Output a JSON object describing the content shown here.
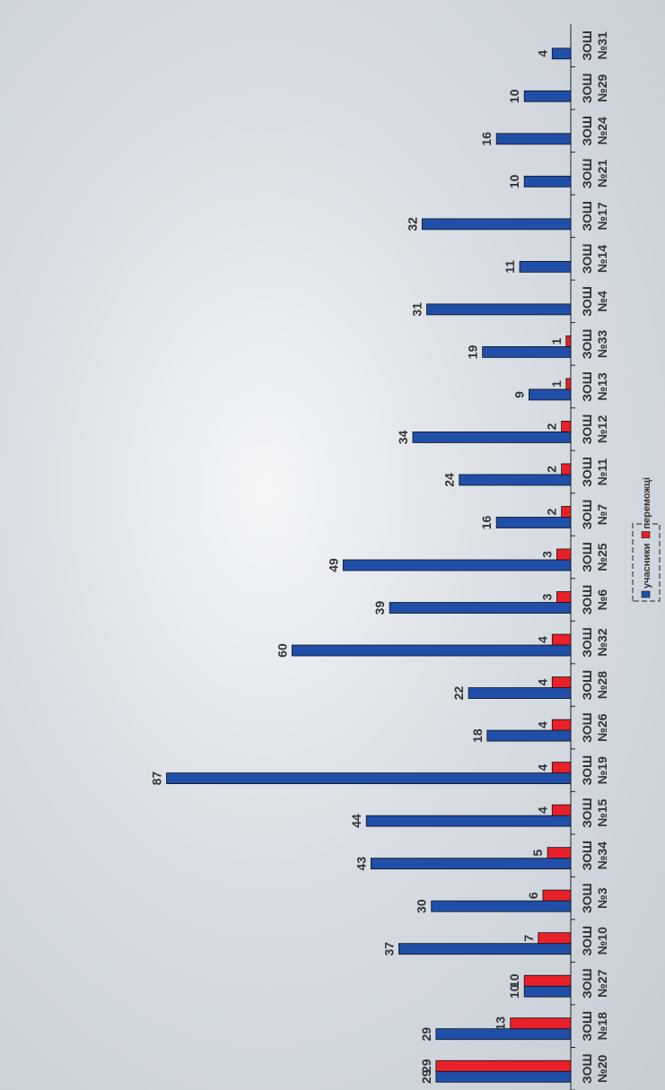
{
  "chart_data": {
    "type": "bar",
    "categories": [
      "ЗОШ №20",
      "ЗОШ №18",
      "ЗОШ №27",
      "ЗОШ №10",
      "ЗОШ №3",
      "ЗОШ №34",
      "ЗОШ №15",
      "ЗОШ №19",
      "ЗОШ №26",
      "ЗОШ №28",
      "ЗОШ №32",
      "ЗОШ №6",
      "ЗОШ №25",
      "ЗОШ №7",
      "ЗОШ №11",
      "ЗОШ №12",
      "ЗОШ №13",
      "ЗОШ №33",
      "ЗОШ №4",
      "ЗОШ №14",
      "ЗОШ №17",
      "ЗОШ №21",
      "ЗОШ №24",
      "ЗОШ №29",
      "ЗОШ №31"
    ],
    "series": [
      {
        "name": "учасники",
        "color": "#1f4fa8",
        "values": [
          29,
          29,
          10,
          37,
          30,
          43,
          44,
          87,
          18,
          22,
          60,
          39,
          49,
          16,
          24,
          34,
          9,
          19,
          31,
          11,
          32,
          10,
          16,
          10,
          4
        ]
      },
      {
        "name": "переможці",
        "color": "#e8202a",
        "values": [
          29,
          13,
          10,
          7,
          6,
          5,
          4,
          4,
          4,
          4,
          4,
          3,
          3,
          2,
          2,
          2,
          1,
          1,
          null,
          null,
          null,
          null,
          null,
          null,
          null
        ]
      }
    ],
    "ylim": [
      0,
      90
    ],
    "legend": "bottom"
  }
}
